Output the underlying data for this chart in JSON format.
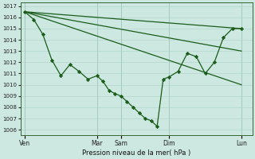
{
  "xlabel": "Pression niveau de la mer( hPa )",
  "background_color": "#cce8e0",
  "grid_color": "#b8d8d0",
  "line_color": "#1a5c1a",
  "marker_color": "#1a5c1a",
  "ylim": [
    1005.5,
    1017.3
  ],
  "yticks": [
    1006,
    1007,
    1008,
    1009,
    1010,
    1011,
    1012,
    1013,
    1014,
    1015,
    1016,
    1017
  ],
  "xtick_labels": [
    "Ven",
    "Mar",
    "Sam",
    "Dim",
    "Lun"
  ],
  "xtick_positions": [
    0,
    0.333,
    0.444,
    0.667,
    1.0
  ],
  "xlim": [
    -0.02,
    1.05
  ],
  "line1_x": [
    0.0,
    1.0
  ],
  "line1_y": [
    1016.5,
    1015.0
  ],
  "line2_x": [
    0.0,
    1.0
  ],
  "line2_y": [
    1016.5,
    1013.0
  ],
  "line3_x": [
    0.0,
    1.0
  ],
  "line3_y": [
    1016.5,
    1010.0
  ],
  "main_x": [
    0.0,
    0.042,
    0.083,
    0.125,
    0.167,
    0.208,
    0.25,
    0.292,
    0.333,
    0.361,
    0.389,
    0.417,
    0.444,
    0.472,
    0.5,
    0.528,
    0.556,
    0.583,
    0.611,
    0.639,
    0.667,
    0.708,
    0.75,
    0.792,
    0.833,
    0.875,
    0.917,
    0.958,
    1.0
  ],
  "main_y": [
    1016.5,
    1015.8,
    1014.5,
    1012.2,
    1010.8,
    1011.8,
    1011.2,
    1010.5,
    1010.8,
    1010.3,
    1009.5,
    1009.2,
    1009.0,
    1008.5,
    1008.0,
    1007.5,
    1007.0,
    1006.8,
    1006.3,
    1010.5,
    1010.7,
    1011.2,
    1012.8,
    1012.5,
    1011.0,
    1012.0,
    1014.2,
    1015.0,
    1015.0
  ]
}
